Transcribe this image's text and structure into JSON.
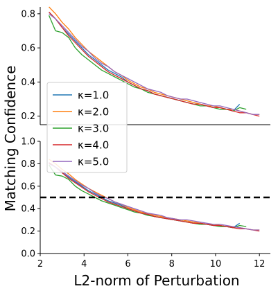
{
  "chart_data": {
    "type": "line",
    "xlabel": "L2-norm of Perturbation",
    "ylabel": "Matching Confidence",
    "xlim": [
      2,
      12.5
    ],
    "x_ticks": [
      "2",
      "4",
      "6",
      "8",
      "10",
      "12"
    ],
    "legend": {
      "placement": "center-left (over both panels)",
      "entries": [
        "κ=1.0",
        "κ=2.0",
        "κ=3.0",
        "κ=4.0",
        "κ=5.0"
      ]
    },
    "series_styles": [
      {
        "color": "#1f77b4"
      },
      {
        "color": "#ff7f0e"
      },
      {
        "color": "#2ca02c"
      },
      {
        "color": "#d62728"
      },
      {
        "color": "#9467bd"
      }
    ],
    "x": [
      2.4,
      2.7,
      3.0,
      3.3,
      3.6,
      3.9,
      4.2,
      4.5,
      4.8,
      5.1,
      5.4,
      5.7,
      6.0,
      6.3,
      6.6,
      6.9,
      7.2,
      7.5,
      7.8,
      8.1,
      8.4,
      8.7,
      9.0,
      9.3,
      9.6,
      9.9,
      10.2,
      10.5,
      10.8,
      11.1,
      11.4,
      11.7,
      12.0
    ],
    "panels": [
      {
        "ylim": [
          0.15,
          0.84
        ],
        "y_ticks": [
          "0.2",
          "0.4",
          "0.6",
          "0.8"
        ],
        "grid": false,
        "series": [
          {
            "name": "κ=1.0",
            "values": [
              0.81,
              0.77,
              0.72,
              0.68,
              0.64,
              0.6,
              0.56,
              0.53,
              0.5,
              0.47,
              0.45,
              0.43,
              0.4,
              0.38,
              0.36,
              0.35,
              0.33,
              0.32,
              0.31,
              0.3,
              0.29,
              0.28,
              0.27,
              0.27,
              0.26,
              0.25,
              0.25,
              0.24,
              0.23,
              0.27,
              null,
              null,
              null
            ]
          },
          {
            "name": "κ=2.0",
            "values": [
              0.84,
              0.8,
              0.75,
              0.71,
              0.66,
              0.62,
              0.58,
              0.55,
              0.52,
              0.49,
              0.46,
              0.44,
              0.41,
              0.39,
              0.37,
              0.36,
              0.34,
              0.33,
              0.32,
              0.31,
              0.3,
              0.29,
              0.28,
              0.27,
              0.26,
              0.26,
              0.25,
              0.24,
              0.24,
              0.23,
              0.22,
              0.21,
              0.21
            ]
          },
          {
            "name": "κ=3.0",
            "values": [
              0.79,
              0.7,
              0.69,
              0.66,
              0.6,
              0.56,
              0.53,
              0.5,
              0.47,
              0.45,
              0.43,
              0.41,
              0.39,
              0.37,
              0.36,
              0.34,
              0.33,
              0.32,
              0.31,
              0.3,
              0.29,
              0.28,
              0.27,
              0.26,
              0.26,
              0.25,
              0.24,
              0.24,
              0.23,
              0.25,
              0.24,
              null,
              null
            ]
          },
          {
            "name": "κ=4.0",
            "values": [
              0.81,
              0.77,
              0.72,
              0.67,
              0.63,
              0.59,
              0.55,
              0.52,
              0.49,
              0.46,
              0.44,
              0.42,
              0.4,
              0.38,
              0.36,
              0.35,
              0.33,
              0.32,
              0.31,
              0.3,
              0.29,
              0.28,
              0.27,
              0.27,
              0.26,
              0.25,
              0.25,
              0.24,
              0.23,
              0.22,
              0.22,
              0.21,
              0.2
            ]
          },
          {
            "name": "κ=5.0",
            "values": [
              0.8,
              0.77,
              0.73,
              0.69,
              0.65,
              0.61,
              0.58,
              0.54,
              0.51,
              0.49,
              0.46,
              0.44,
              0.42,
              0.4,
              0.38,
              0.36,
              0.35,
              0.34,
              0.32,
              0.31,
              0.3,
              0.3,
              0.29,
              0.28,
              0.27,
              0.26,
              0.26,
              0.25,
              0.24,
              0.23,
              0.22,
              0.21,
              0.21
            ]
          }
        ]
      },
      {
        "ylim": [
          0.0,
          1.0
        ],
        "y_ticks": [
          "0.0",
          "0.2",
          "0.4",
          "0.6",
          "0.8",
          "1.0"
        ],
        "grid": false,
        "reference_line": {
          "y": 0.5,
          "style": "dashed",
          "color": "#000000"
        },
        "series": [
          {
            "name": "κ=1.0",
            "values": [
              0.81,
              0.77,
              0.72,
              0.68,
              0.64,
              0.6,
              0.56,
              0.53,
              0.5,
              0.47,
              0.45,
              0.43,
              0.4,
              0.38,
              0.36,
              0.35,
              0.33,
              0.32,
              0.31,
              0.3,
              0.29,
              0.28,
              0.27,
              0.27,
              0.26,
              0.25,
              0.25,
              0.24,
              0.23,
              0.27,
              null,
              null,
              null
            ]
          },
          {
            "name": "κ=2.0",
            "values": [
              0.84,
              0.8,
              0.75,
              0.71,
              0.66,
              0.62,
              0.58,
              0.55,
              0.52,
              0.49,
              0.46,
              0.44,
              0.41,
              0.39,
              0.37,
              0.36,
              0.34,
              0.33,
              0.32,
              0.31,
              0.3,
              0.29,
              0.28,
              0.27,
              0.26,
              0.26,
              0.25,
              0.24,
              0.24,
              0.23,
              0.22,
              0.21,
              0.21
            ]
          },
          {
            "name": "κ=3.0",
            "values": [
              0.79,
              0.7,
              0.69,
              0.66,
              0.6,
              0.56,
              0.53,
              0.5,
              0.47,
              0.45,
              0.43,
              0.41,
              0.39,
              0.37,
              0.36,
              0.34,
              0.33,
              0.32,
              0.31,
              0.3,
              0.29,
              0.28,
              0.27,
              0.26,
              0.26,
              0.25,
              0.24,
              0.24,
              0.23,
              0.25,
              0.24,
              null,
              null
            ]
          },
          {
            "name": "κ=4.0",
            "values": [
              0.81,
              0.77,
              0.72,
              0.67,
              0.63,
              0.59,
              0.55,
              0.52,
              0.49,
              0.46,
              0.44,
              0.42,
              0.4,
              0.38,
              0.36,
              0.35,
              0.33,
              0.32,
              0.31,
              0.3,
              0.29,
              0.28,
              0.27,
              0.27,
              0.26,
              0.25,
              0.25,
              0.24,
              0.23,
              0.22,
              0.22,
              0.21,
              0.2
            ]
          },
          {
            "name": "κ=5.0",
            "values": [
              0.8,
              0.77,
              0.73,
              0.69,
              0.65,
              0.61,
              0.58,
              0.54,
              0.51,
              0.49,
              0.46,
              0.44,
              0.42,
              0.4,
              0.38,
              0.36,
              0.35,
              0.34,
              0.32,
              0.31,
              0.3,
              0.3,
              0.29,
              0.28,
              0.27,
              0.26,
              0.26,
              0.25,
              0.24,
              0.23,
              0.22,
              0.21,
              0.21
            ]
          }
        ]
      }
    ]
  }
}
